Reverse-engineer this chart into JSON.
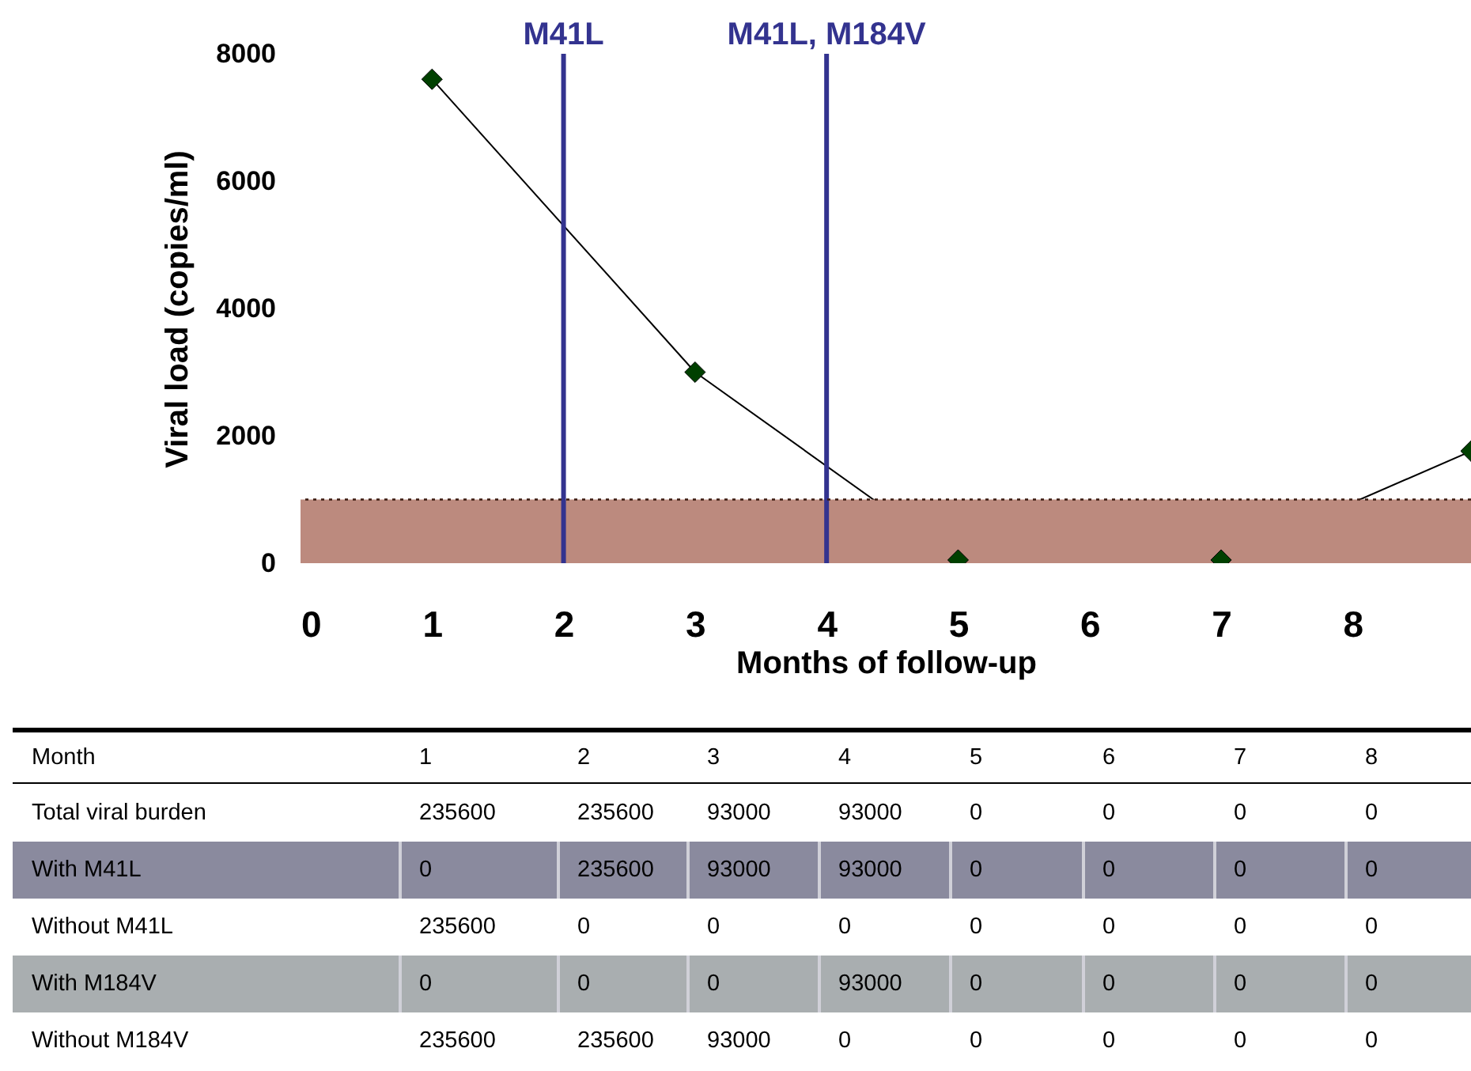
{
  "chart_data": [
    {
      "type": "line",
      "xlabel": "Months of follow-up",
      "ylabel": "Viral load (copies/ml)",
      "x": [
        1,
        3,
        5,
        7,
        8.9
      ],
      "series": [
        {
          "color": "#004000",
          "values": [
            7600,
            3000,
            50,
            50,
            1760
          ]
        }
      ],
      "marker": "diamond",
      "line_style": "solid",
      "xlim": [
        0,
        8.9
      ],
      "xticks": [
        0,
        1,
        2,
        3,
        4,
        5,
        6,
        7,
        8
      ],
      "ylim": [
        0,
        8000
      ],
      "yticks": [
        0,
        2000,
        4000,
        6000,
        8000
      ],
      "ref_lines": [
        {
          "axis": "x",
          "value": 2,
          "label": "M41L",
          "color": "#33338f",
          "line_style": "solid"
        },
        {
          "axis": "x",
          "value": 4,
          "label": "M41L, M184V",
          "color": "#33338f",
          "line_style": "solid"
        },
        {
          "axis": "y",
          "value": 1000,
          "color": "#3a1a10",
          "line_style": "dotted"
        }
      ],
      "bands": [
        {
          "axis": "y",
          "from": 0,
          "to": 1000,
          "color": "#bc8a7e"
        }
      ]
    },
    {
      "type": "heatmap",
      "xlabel": "Month",
      "data_labels": true,
      "categories": [
        "1",
        "2",
        "3",
        "4",
        "5",
        "6",
        "7",
        "8"
      ],
      "y_categories": [
        "Total viral burden",
        "With M41L",
        "Without M41L",
        "With M184V",
        "Without M184V"
      ],
      "colors": [
        null,
        "#8a8a9e",
        null,
        "#a9aeb0",
        null
      ],
      "cells": [
        [
          235600,
          235600,
          93000,
          93000,
          0,
          0,
          0,
          0
        ],
        [
          0,
          235600,
          93000,
          93000,
          0,
          0,
          0,
          0
        ],
        [
          235600,
          0,
          0,
          0,
          0,
          0,
          0,
          0
        ],
        [
          0,
          0,
          0,
          93000,
          0,
          0,
          0,
          0
        ],
        [
          235600,
          235600,
          93000,
          0,
          0,
          0,
          0,
          0
        ]
      ]
    }
  ]
}
